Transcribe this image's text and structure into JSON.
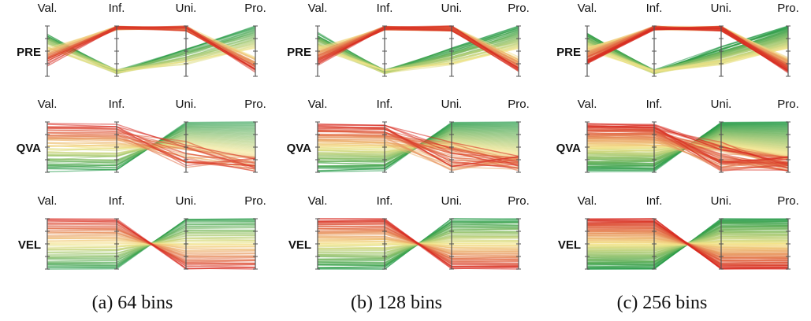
{
  "chart_data": {
    "type": "parallel-coordinates",
    "axes": [
      "Val.",
      "Inf.",
      "Uni.",
      "Pro."
    ],
    "rows": [
      "PRE",
      "QVA",
      "VEL"
    ],
    "panels": [
      {
        "caption": "(a) 64 bins",
        "bins": 64
      },
      {
        "caption": "(b) 128 bins",
        "bins": 128
      },
      {
        "caption": "(c) 256 bins",
        "bins": 256
      }
    ],
    "colors": {
      "high": "#d7261e",
      "mid": "#f4e58a",
      "low": "#1a9641"
    },
    "row_patterns": {
      "PRE": [
        {
          "val": 0.3,
          "inf": 1.0,
          "uni": 1.0,
          "pro": 0.1,
          "color": "#d7261e"
        },
        {
          "val": 0.8,
          "inf": 0.0,
          "uni": 0.3,
          "pro": 1.0,
          "color": "#1a9641"
        }
      ],
      "QVA": [
        {
          "val": 0.9,
          "inf": 0.9,
          "uni": 0.0,
          "pro": 0.2,
          "color": "#d7261e"
        },
        {
          "val": 0.1,
          "inf": 0.2,
          "uni": 0.7,
          "pro": 1.0,
          "color": "#1a9641"
        }
      ],
      "VEL": [
        {
          "val": 1.0,
          "inf": 1.0,
          "uni": 0.0,
          "pro": 0.0,
          "color": "#d7261e"
        },
        {
          "val": 0.0,
          "inf": 0.0,
          "uni": 1.0,
          "pro": 1.0,
          "color": "#1a9641"
        }
      ]
    }
  }
}
